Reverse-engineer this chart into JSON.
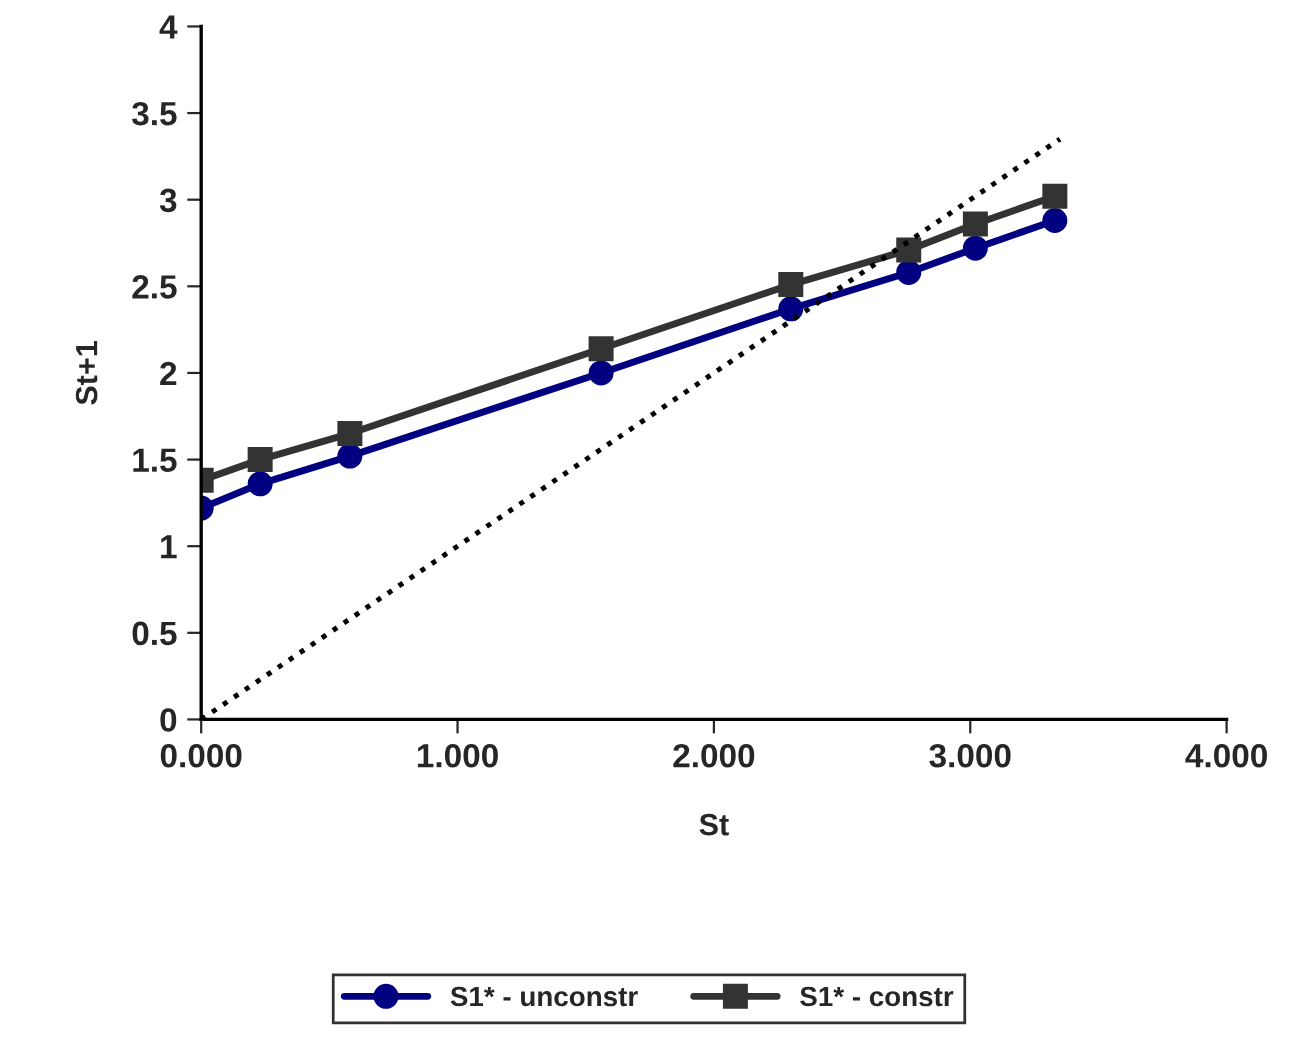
{
  "chart_data": {
    "type": "line",
    "xlabel": "St",
    "ylabel": "St+1",
    "xlim": [
      0,
      4
    ],
    "xticks": [
      {
        "value": 0,
        "label": "0.000"
      },
      {
        "value": 1,
        "label": "1.000"
      },
      {
        "value": 2,
        "label": "2.000"
      },
      {
        "value": 3,
        "label": "3.000"
      },
      {
        "value": 4,
        "label": "4.000"
      }
    ],
    "ylim": [
      0,
      4
    ],
    "yticks": [
      0,
      0.5,
      1,
      1.5,
      2,
      2.5,
      3,
      3.5,
      4
    ],
    "grid": false,
    "legend": "bottom",
    "series": [
      {
        "name": "S1* - unconstr",
        "color": "#000080",
        "marker": "circle",
        "line_style": "solid",
        "x": [
          0,
          0.23,
          0.58,
          1.56,
          2.3,
          2.76,
          3.02,
          3.33
        ],
        "values": [
          1.22,
          1.36,
          1.52,
          2.0,
          2.37,
          2.58,
          2.72,
          2.88
        ]
      },
      {
        "name": "S1* - constr",
        "color": "#333333",
        "marker": "square",
        "line_style": "solid",
        "x": [
          0,
          0.23,
          0.58,
          1.56,
          2.3,
          2.76,
          3.02,
          3.33
        ],
        "values": [
          1.38,
          1.5,
          1.65,
          2.14,
          2.51,
          2.71,
          2.86,
          3.02
        ]
      },
      {
        "color": "#000000",
        "marker": "none",
        "line_style": "dotted",
        "x": [
          0,
          3.35
        ],
        "values": [
          0,
          3.35
        ]
      }
    ]
  }
}
